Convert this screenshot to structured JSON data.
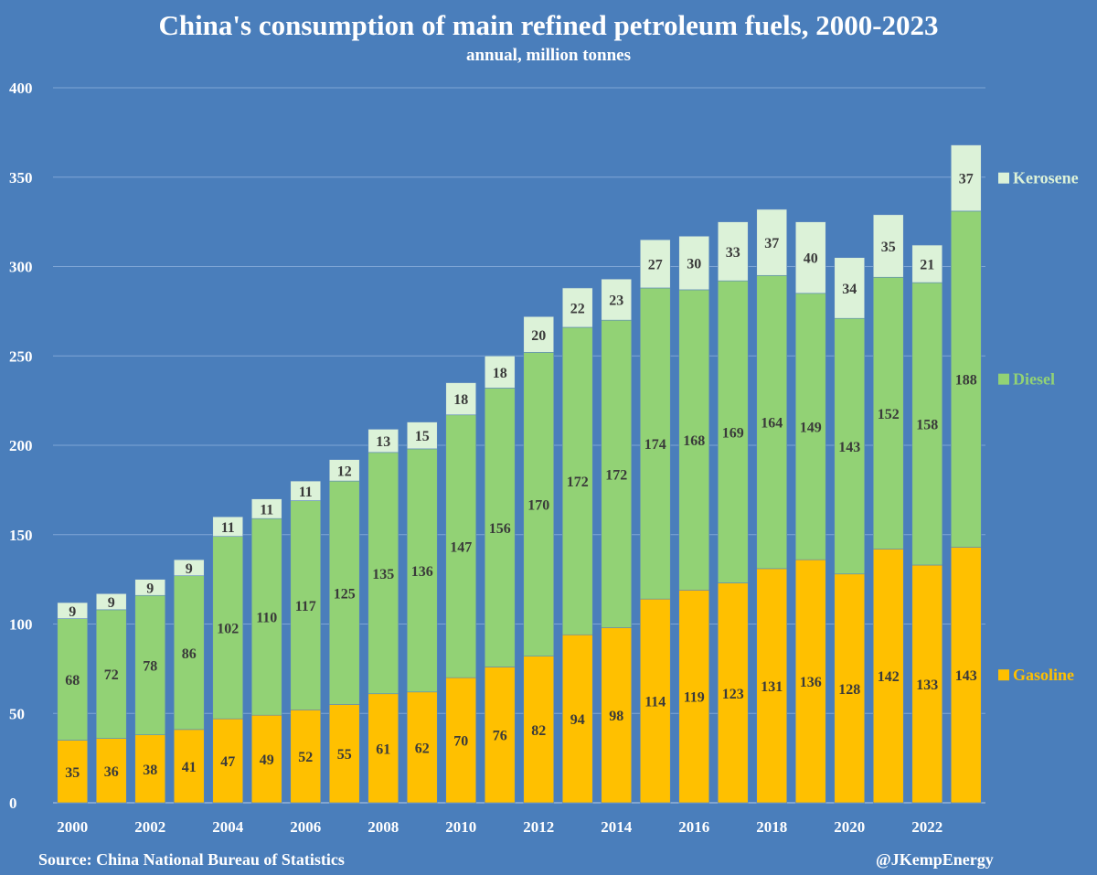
{
  "title": "China's consumption of main refined petroleum fuels, 2000-2023",
  "subtitle": "annual, million tonnes",
  "source": "Source: China National Bureau of Statistics",
  "handle": "@JKempEnergy",
  "colors": {
    "background": "#4a7ebb",
    "gasoline": "#ffc000",
    "diesel": "#92d275",
    "kerosene": "#dcf2d8",
    "label_text": "#3a3a3a",
    "axis_text": "#ffffff"
  },
  "chart_data": {
    "type": "bar",
    "stacked": true,
    "title": "China's consumption of main refined petroleum fuels, 2000-2023",
    "subtitle": "annual, million tonnes",
    "xlabel": "",
    "ylabel": "",
    "ylim": [
      0,
      400
    ],
    "yticks": [
      0,
      50,
      100,
      150,
      200,
      250,
      300,
      350,
      400
    ],
    "grid": true,
    "legend_position": "right",
    "categories": [
      "2000",
      "2001",
      "2002",
      "2003",
      "2004",
      "2005",
      "2006",
      "2007",
      "2008",
      "2009",
      "2010",
      "2011",
      "2012",
      "2013",
      "2014",
      "2015",
      "2016",
      "2017",
      "2018",
      "2019",
      "2020",
      "2021",
      "2022",
      "2023"
    ],
    "xtick_labels": [
      "2000",
      "",
      "2002",
      "",
      "2004",
      "",
      "2006",
      "",
      "2008",
      "",
      "2010",
      "",
      "2012",
      "",
      "2014",
      "",
      "2016",
      "",
      "2018",
      "",
      "2020",
      "",
      "2022",
      ""
    ],
    "series": [
      {
        "name": "Gasoline",
        "values": [
          35,
          36,
          38,
          41,
          47,
          49,
          52,
          55,
          61,
          62,
          70,
          76,
          82,
          94,
          98,
          114,
          119,
          123,
          131,
          136,
          128,
          142,
          133,
          143
        ]
      },
      {
        "name": "Diesel",
        "values": [
          68,
          72,
          78,
          86,
          102,
          110,
          117,
          125,
          135,
          136,
          147,
          156,
          170,
          172,
          172,
          174,
          168,
          169,
          164,
          149,
          143,
          152,
          158,
          188
        ]
      },
      {
        "name": "Kerosene",
        "values": [
          9,
          9,
          9,
          9,
          11,
          11,
          11,
          12,
          13,
          15,
          18,
          18,
          20,
          22,
          23,
          27,
          30,
          33,
          37,
          40,
          34,
          35,
          21,
          37
        ]
      }
    ]
  }
}
